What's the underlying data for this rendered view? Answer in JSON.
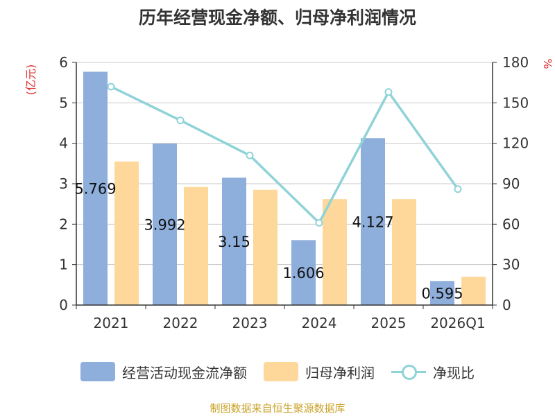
{
  "chart_data": {
    "type": "bar",
    "title": "历年经营现金净额、归母净利润情况",
    "categories": [
      "2021",
      "2022",
      "2023",
      "2024",
      "2025",
      "2026Q1"
    ],
    "y_left_unit": "(亿元)",
    "y_right_unit": "%",
    "ylim_left": [
      0,
      6
    ],
    "yticks_left": [
      "0",
      "1",
      "2",
      "3",
      "4",
      "5",
      "6"
    ],
    "ylim_right": [
      0,
      180
    ],
    "yticks_right": [
      "0",
      "30",
      "60",
      "90",
      "120",
      "150",
      "180"
    ],
    "grid": true,
    "legend_position": "bottom",
    "series": [
      {
        "name": "经营活动现金流净额",
        "kind": "bar",
        "axis": "left",
        "color": "#8eaedb",
        "values": [
          5.769,
          3.992,
          3.15,
          1.606,
          4.127,
          0.595
        ],
        "labels": [
          "5.769",
          "3.992",
          "3.15",
          "1.606",
          "4.127",
          "0.595"
        ]
      },
      {
        "name": "归母净利润",
        "kind": "bar",
        "axis": "left",
        "color": "#fdd89a",
        "values": [
          3.55,
          2.92,
          2.85,
          2.62,
          2.62,
          0.7
        ]
      },
      {
        "name": "净现比",
        "kind": "line",
        "axis": "right",
        "color": "#8fd3d8",
        "values": [
          162,
          137,
          111,
          61,
          158,
          86
        ]
      }
    ]
  },
  "source": "制图数据来自恒生聚源数据库"
}
